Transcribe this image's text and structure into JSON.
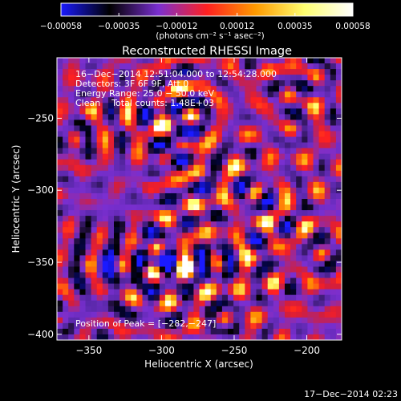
{
  "colorbar": {
    "ticks": [
      {
        "value": -0.00058,
        "label": "−0.00058"
      },
      {
        "value": -0.00035,
        "label": "−0.00035"
      },
      {
        "value": -0.00012,
        "label": "−0.00012"
      },
      {
        "value": 0.00012,
        "label": "0.00012"
      },
      {
        "value": 0.00035,
        "label": "0.00035"
      },
      {
        "value": 0.00058,
        "label": "0.00058"
      }
    ],
    "range": [
      -0.00058,
      0.00058
    ],
    "units": "(photons cm⁻² s⁻¹ asec⁻²)",
    "colors": [
      "#1a1aff",
      "#000000",
      "#7a2fd0",
      "#ff2020",
      "#ff9a00",
      "#ffff70",
      "#ffffff"
    ]
  },
  "chart_data": {
    "type": "heatmap",
    "title": "Reconstructed RHESSI Image",
    "xlabel": "Heliocentric X (arcsec)",
    "ylabel": "Heliocentric Y (arcsec)",
    "xlim": [
      -372,
      -176
    ],
    "ylim": [
      -404,
      -208
    ],
    "xticks": [
      {
        "value": -350,
        "label": "−350"
      },
      {
        "value": -300,
        "label": "−300"
      },
      {
        "value": -250,
        "label": "−250"
      },
      {
        "value": -200,
        "label": "−200"
      }
    ],
    "yticks": [
      {
        "value": -250,
        "label": "−250"
      },
      {
        "value": -300,
        "label": "−300"
      },
      {
        "value": -350,
        "label": "−350"
      },
      {
        "value": -400,
        "label": "−400"
      }
    ],
    "annotations": {
      "line1": "16−Dec−2014 12:51:04.000 to 12:54:28.000",
      "line2": "Detectors: 3F 6F 9F, Att 0",
      "line3": "Energy Range: 25.0 − 50.0 keV",
      "line4": "Clean    Total counts: 1.48E+03",
      "peak": "Position of Peak = [−282,−247]"
    },
    "peak": [
      -282,
      -247
    ]
  },
  "timestamp": "17−Dec−2014 02:23"
}
